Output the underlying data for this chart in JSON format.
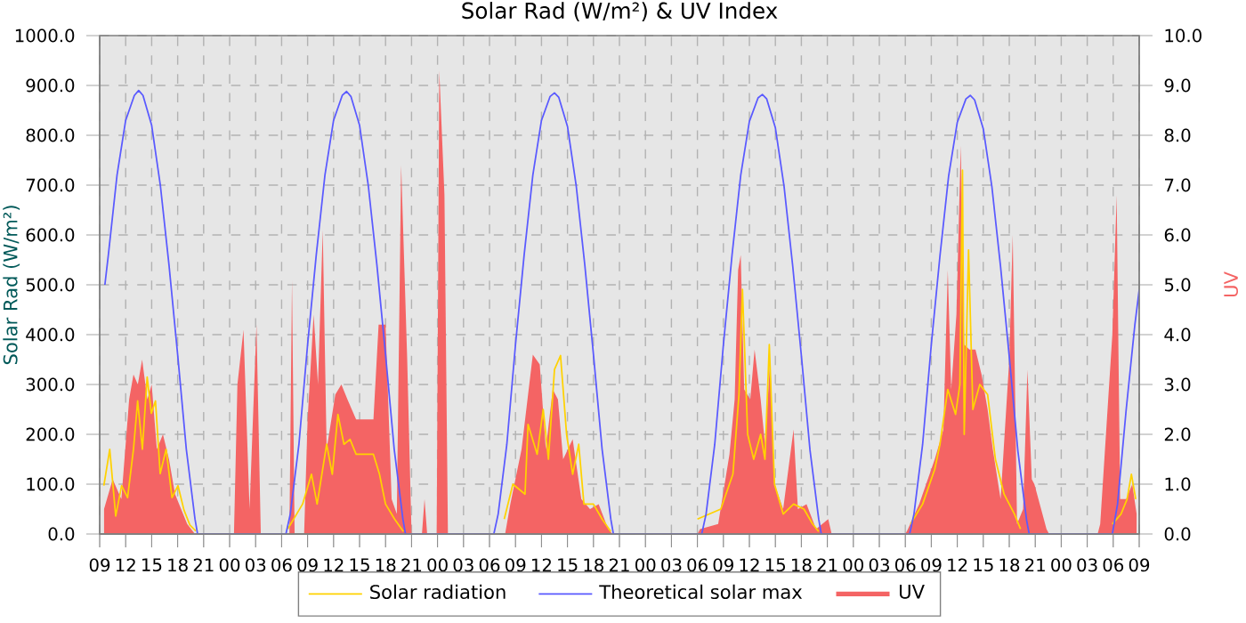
{
  "chart_data": {
    "type": "line",
    "title": "Solar Rad (W/m²) &  UV Index",
    "ylabel": "Solar Rad (W/m²)",
    "y2label": "UV",
    "xlim": [
      9,
      129
    ],
    "xticks": [
      {
        "value": 9,
        "label": "09"
      },
      {
        "value": 12,
        "label": "12"
      },
      {
        "value": 15,
        "label": "15"
      },
      {
        "value": 18,
        "label": "18"
      },
      {
        "value": 21,
        "label": "21"
      },
      {
        "value": 24,
        "label": "00"
      },
      {
        "value": 27,
        "label": "03"
      },
      {
        "value": 30,
        "label": "06"
      },
      {
        "value": 33,
        "label": "09"
      },
      {
        "value": 36,
        "label": "12"
      },
      {
        "value": 39,
        "label": "15"
      },
      {
        "value": 42,
        "label": "18"
      },
      {
        "value": 45,
        "label": "21"
      },
      {
        "value": 48,
        "label": "00"
      },
      {
        "value": 51,
        "label": "03"
      },
      {
        "value": 54,
        "label": "06"
      },
      {
        "value": 57,
        "label": "09"
      },
      {
        "value": 60,
        "label": "12"
      },
      {
        "value": 63,
        "label": "15"
      },
      {
        "value": 66,
        "label": "18"
      },
      {
        "value": 69,
        "label": "21"
      },
      {
        "value": 72,
        "label": "00"
      },
      {
        "value": 75,
        "label": "03"
      },
      {
        "value": 78,
        "label": "06"
      },
      {
        "value": 81,
        "label": "09"
      },
      {
        "value": 84,
        "label": "12"
      },
      {
        "value": 87,
        "label": "15"
      },
      {
        "value": 90,
        "label": "18"
      },
      {
        "value": 93,
        "label": "21"
      },
      {
        "value": 96,
        "label": "00"
      },
      {
        "value": 99,
        "label": "03"
      },
      {
        "value": 102,
        "label": "06"
      },
      {
        "value": 105,
        "label": "09"
      },
      {
        "value": 108,
        "label": "12"
      },
      {
        "value": 111,
        "label": "15"
      },
      {
        "value": 114,
        "label": "18"
      },
      {
        "value": 117,
        "label": "21"
      },
      {
        "value": 120,
        "label": "00"
      },
      {
        "value": 123,
        "label": "03"
      },
      {
        "value": 126,
        "label": "06"
      },
      {
        "value": 129,
        "label": "09"
      }
    ],
    "ylim": [
      0,
      1000
    ],
    "yticks": [
      {
        "value": 0,
        "label": "0.0"
      },
      {
        "value": 100,
        "label": "100.0"
      },
      {
        "value": 200,
        "label": "200.0"
      },
      {
        "value": 300,
        "label": "300.0"
      },
      {
        "value": 400,
        "label": "400.0"
      },
      {
        "value": 500,
        "label": "500.0"
      },
      {
        "value": 600,
        "label": "600.0"
      },
      {
        "value": 700,
        "label": "700.0"
      },
      {
        "value": 800,
        "label": "800.0"
      },
      {
        "value": 900,
        "label": "900.0"
      },
      {
        "value": 1000,
        "label": "1000.0"
      }
    ],
    "y2lim": [
      0,
      10
    ],
    "y2ticks": [
      {
        "value": 0,
        "label": "0.0"
      },
      {
        "value": 1,
        "label": "1.0"
      },
      {
        "value": 2,
        "label": "2.0"
      },
      {
        "value": 3,
        "label": "3.0"
      },
      {
        "value": 4,
        "label": "4.0"
      },
      {
        "value": 5,
        "label": "5.0"
      },
      {
        "value": 6,
        "label": "6.0"
      },
      {
        "value": 7,
        "label": "7.0"
      },
      {
        "value": 8,
        "label": "8.0"
      },
      {
        "value": 9,
        "label": "9.0"
      },
      {
        "value": 10,
        "label": "10.0"
      }
    ],
    "grid": true,
    "legend": "bottom",
    "marker": "none",
    "line_style": "solid",
    "series": [
      {
        "name": "Solar radiation",
        "color": "#ffd200",
        "x": [
          9.48,
          10.16,
          10.85,
          11.53,
          12.22,
          12.9,
          13.38,
          13.93,
          14.48,
          14.96,
          15.44,
          15.98,
          16.67,
          17.35,
          18.04,
          18.73,
          19.41,
          20.1,
          24,
          30.71,
          32.42,
          33.45,
          34.1,
          35.2,
          35.85,
          36.5,
          37.2,
          37.9,
          38.6,
          40.6,
          41.3,
          42,
          43.04,
          44.06,
          48,
          55.7,
          56.7,
          58.1,
          58.45,
          59.5,
          60.2,
          60.8,
          61.5,
          62.2,
          62.9,
          63.6,
          64.3,
          64.9,
          66,
          67,
          68,
          72,
          78,
          80.7,
          82.1,
          82.8,
          83.2,
          83.8,
          84.5,
          85.3,
          85.8,
          86.3,
          86.9,
          87.9,
          89.1,
          90.3,
          91.3,
          92,
          96,
          102.6,
          104,
          105.4,
          106,
          106.9,
          107.8,
          108.3,
          108.6,
          108.8,
          109.3,
          109.8,
          110.6,
          111.5,
          112.4,
          113.4,
          114.6,
          115.3,
          120,
          125.9,
          126.9,
          127.6,
          128.1,
          128.6
        ],
        "values": [
          97,
          170,
          36,
          97,
          73,
          170,
          267,
          170,
          315,
          242,
          267,
          121,
          170,
          73,
          97,
          48,
          18,
          6,
          null,
          10,
          60,
          120,
          60,
          180,
          120,
          240,
          180,
          190,
          160,
          160,
          120,
          60,
          30,
          5,
          null,
          30,
          100,
          80,
          220,
          160,
          250,
          150,
          330,
          358,
          200,
          120,
          180,
          60,
          60,
          30,
          5,
          null,
          30,
          50,
          120,
          280,
          491,
          200,
          150,
          200,
          150,
          380,
          100,
          40,
          60,
          50,
          20,
          5,
          null,
          20,
          60,
          130,
          180,
          290,
          240,
          300,
          730,
          200,
          570,
          250,
          300,
          280,
          150,
          80,
          40,
          10,
          null,
          20,
          40,
          70,
          120,
          70
        ]
      },
      {
        "name": "Theoretical solar max",
        "color": "#5a5aff",
        "x": [
          9.6,
          10,
          11,
          12,
          13,
          13.5,
          14,
          15,
          16,
          17,
          18,
          19,
          20,
          20.3,
          30.5,
          31,
          32,
          33,
          34,
          35,
          36,
          37,
          37.5,
          38,
          39,
          40,
          41,
          42,
          43,
          44,
          44.3,
          54.5,
          55,
          56,
          57,
          58,
          59,
          60,
          61,
          61.5,
          62,
          63,
          64,
          65,
          66,
          67,
          68,
          68.3,
          78.5,
          79,
          80,
          81,
          82,
          83,
          84,
          85,
          85.5,
          86,
          87,
          88,
          89,
          90,
          91,
          92,
          92.3,
          102.5,
          103,
          104,
          105,
          106,
          107,
          108,
          109,
          109.5,
          110,
          111,
          112,
          113,
          114,
          115,
          116,
          116.3,
          125.9,
          126.5,
          127.5,
          128.5,
          129
        ],
        "values": [
          500,
          560,
          720,
          830,
          880,
          890,
          880,
          820,
          700,
          540,
          360,
          170,
          30,
          0,
          0,
          40,
          180,
          380,
          560,
          720,
          830,
          880,
          888,
          878,
          820,
          700,
          540,
          360,
          170,
          30,
          0,
          0,
          40,
          180,
          380,
          560,
          720,
          830,
          878,
          885,
          876,
          818,
          700,
          540,
          360,
          170,
          30,
          0,
          0,
          40,
          180,
          380,
          560,
          720,
          828,
          875,
          882,
          873,
          815,
          698,
          538,
          358,
          168,
          30,
          0,
          0,
          40,
          180,
          380,
          558,
          718,
          826,
          873,
          880,
          871,
          813,
          696,
          536,
          356,
          166,
          28,
          0,
          0,
          60,
          250,
          420,
          490
        ]
      },
      {
        "name": "UV",
        "type": "area",
        "axis": "y2",
        "color": "#f46464",
        "x": [
          9.5,
          10.5,
          11.5,
          12.4,
          12.9,
          13.4,
          13.9,
          14.5,
          15,
          15.6,
          16.3,
          17,
          17.7,
          18.4,
          19.1,
          20,
          24.5,
          24.9,
          25.6,
          26.3,
          27.1,
          27.6,
          30.9,
          31.2,
          31.5,
          32.6,
          33,
          33.7,
          34.2,
          34.75,
          35.2,
          36.2,
          36.9,
          37.6,
          38.6,
          39.3,
          40,
          40.6,
          41.2,
          42,
          42.7,
          43.3,
          43.8,
          44.5,
          45,
          46.2,
          46.5,
          46.8,
          47.9,
          48.2,
          48.8,
          49.2,
          55.8,
          56.4,
          57.7,
          59,
          59.8,
          60.5,
          61.3,
          61.9,
          62.5,
          63.6,
          64.6,
          65.6,
          66.6,
          67.7,
          68.2,
          78,
          78.3,
          80.4,
          81.7,
          82.3,
          82.7,
          83,
          83.4,
          84.1,
          84.6,
          85.3,
          85.8,
          86.4,
          86.9,
          87.9,
          89.1,
          89.6,
          90.6,
          91.7,
          93.1,
          93.5,
          102,
          102.3,
          103.6,
          105.4,
          106.4,
          106.9,
          107.3,
          107.9,
          108.4,
          108.8,
          109.4,
          110.1,
          110.8,
          111.5,
          112.1,
          113,
          114,
          114.4,
          114.9,
          115.6,
          116.1,
          116.6,
          116.9,
          118.3,
          118.6,
          124.2,
          124.5,
          125.9,
          126.4,
          126.8,
          127.5,
          128.2,
          128.7
        ],
        "values": [
          0.5,
          1.1,
          0.7,
          2.7,
          3.2,
          3.0,
          3.5,
          2.7,
          3.0,
          1.7,
          2.0,
          1.5,
          0.8,
          0.5,
          0.2,
          0,
          0,
          3.0,
          4.1,
          0.5,
          4.2,
          0,
          0,
          5.1,
          0,
          0,
          2.3,
          4.4,
          3.0,
          6.1,
          1.7,
          2.8,
          3.0,
          2.7,
          2.3,
          2.3,
          2.3,
          2.3,
          4.2,
          4.2,
          0.7,
          0.4,
          7.4,
          3.5,
          0,
          0,
          0.7,
          0,
          0,
          9.3,
          6.8,
          0,
          0,
          0.6,
          1.7,
          3.6,
          3.4,
          1.7,
          2.9,
          2.7,
          1.5,
          1.9,
          0.7,
          0.5,
          0.6,
          0.1,
          0,
          0,
          0.1,
          0.2,
          1.6,
          2.7,
          5.3,
          5.6,
          2.9,
          2.7,
          3.7,
          2.7,
          1.8,
          3.5,
          1.0,
          0.5,
          2.1,
          0.5,
          0.6,
          0.1,
          0.3,
          0,
          0,
          0.1,
          0.6,
          1.5,
          2.1,
          5.3,
          2.9,
          4.4,
          7.8,
          3.8,
          3.7,
          3.7,
          3.2,
          2.5,
          1.7,
          0.7,
          3.5,
          6.0,
          0.2,
          0.5,
          3.3,
          1.1,
          1.0,
          0.1,
          0,
          0,
          0.2,
          4.0,
          6.8,
          0.7,
          0.7,
          1.0,
          0.4
        ]
      }
    ]
  }
}
